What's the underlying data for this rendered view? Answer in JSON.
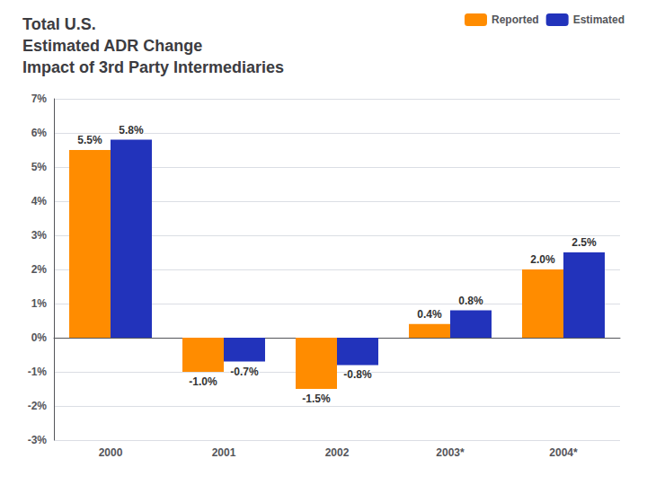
{
  "chart_data": {
    "type": "bar",
    "title": "Total U.S.\nEstimated ADR Change\nImpact of 3rd Party Intermediaries",
    "categories": [
      "2000",
      "2001",
      "2002",
      "2003*",
      "2004*"
    ],
    "series": [
      {
        "name": "Reported",
        "color": "#FF8C00",
        "values": [
          5.5,
          -1.0,
          -1.5,
          0.4,
          2.0
        ],
        "value_labels": [
          "5.5%",
          "-1.0%",
          "-1.5%",
          "0.4%",
          "2.0%"
        ]
      },
      {
        "name": "Estimated",
        "color": "#2233BB",
        "values": [
          5.8,
          -0.7,
          -0.8,
          0.8,
          2.5
        ],
        "value_labels": [
          "5.8%",
          "-0.7%",
          "-0.8%",
          "0.8%",
          "2.5%"
        ]
      }
    ],
    "ylim": [
      -3,
      7
    ],
    "yticks": [
      {
        "value": -3,
        "label": "-3%"
      },
      {
        "value": -2,
        "label": "-2%"
      },
      {
        "value": -1,
        "label": "-1%"
      },
      {
        "value": 0,
        "label": "0%"
      },
      {
        "value": 1,
        "label": "1%"
      },
      {
        "value": 2,
        "label": "2%"
      },
      {
        "value": 3,
        "label": "3%"
      },
      {
        "value": 4,
        "label": "4%"
      },
      {
        "value": 5,
        "label": "5%"
      },
      {
        "value": 6,
        "label": "6%"
      },
      {
        "value": 7,
        "label": "7%"
      }
    ],
    "grid": true,
    "legend": "upper right",
    "data_labels": true
  }
}
